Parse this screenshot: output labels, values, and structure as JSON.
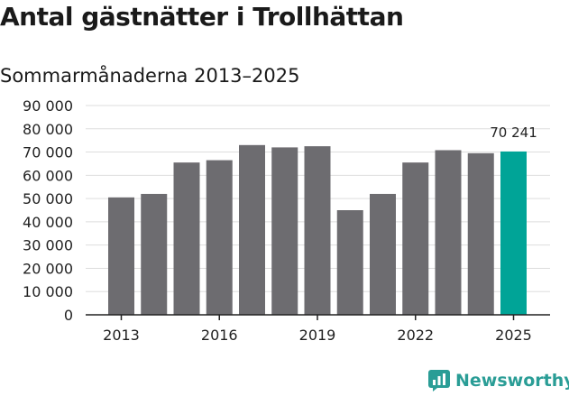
{
  "header": {
    "title": "Antal gästnätter i Trollhättan",
    "subtitle": "Sommarmånaderna 2013–2025"
  },
  "colors": {
    "bar": "#6d6c70",
    "highlight": "#00a497",
    "grid": "#dddddd",
    "axis": "#222222",
    "brand": "#2a9d96"
  },
  "chart_data": {
    "type": "bar",
    "title": "Antal gästnätter i Trollhättan",
    "subtitle": "Sommarmånaderna 2013–2025",
    "categories": [
      "2013",
      "2014",
      "2015",
      "2016",
      "2017",
      "2018",
      "2019",
      "2020",
      "2021",
      "2022",
      "2023",
      "2024",
      "2025"
    ],
    "values": [
      50500,
      52000,
      65500,
      66500,
      73000,
      72000,
      72500,
      45000,
      52000,
      65500,
      70800,
      69500,
      70241
    ],
    "highlight_index": 12,
    "highlight_label": "70 241",
    "x_tick_labels": [
      "2013",
      "2016",
      "2019",
      "2022",
      "2025"
    ],
    "y_ticks": [
      0,
      10000,
      20000,
      30000,
      40000,
      50000,
      60000,
      70000,
      80000,
      90000
    ],
    "y_tick_labels": [
      "0",
      "10 000",
      "20 000",
      "30 000",
      "40 000",
      "50 000",
      "60 000",
      "70 000",
      "80 000",
      "90 000"
    ],
    "ylim": [
      0,
      90000
    ],
    "grid": true,
    "legend": "none",
    "xlabel": "",
    "ylabel": ""
  },
  "brand": {
    "name": "Newsworthy",
    "icon": "newsworthy-logo-icon"
  }
}
